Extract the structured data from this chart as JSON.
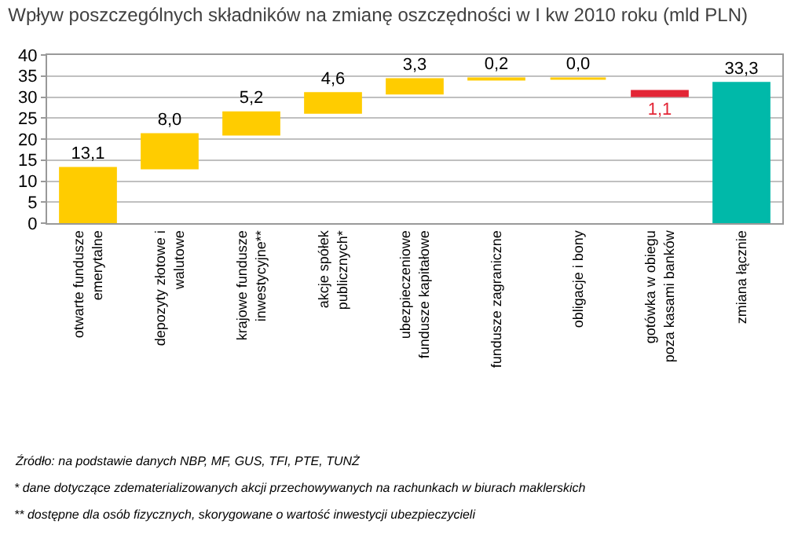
{
  "chart_data": {
    "type": "bar",
    "title": "Wpływ poszczególnych składników na zmianę oszczędności w I kw 2010 roku (mld PLN)",
    "categories": [
      "otwarte fundusze emerytalne",
      "depozyty złotowe i walutowe",
      "krajowe fundusze inwestycyjne**",
      "akcje spółek publicznych*",
      "ubezpieczeniowe fundusze kapitałowe",
      "fundusze zagraniczne",
      "obligacje i bony",
      "gotówka w obiegu poza kasami banków",
      "zmiana łącznie"
    ],
    "values": [
      13.1,
      8.0,
      5.2,
      4.6,
      3.3,
      0.2,
      0.0,
      -1.1,
      33.3
    ],
    "base": [
      0,
      13.1,
      21.1,
      26.3,
      30.9,
      34.2,
      34.4,
      31.4,
      0
    ],
    "colors": [
      "#ffcc00",
      "#ffcc00",
      "#ffcc00",
      "#ffcc00",
      "#ffcc00",
      "#ffcc00",
      "#ffcc00",
      "#e32636",
      "#00b9a9"
    ],
    "value_labels": [
      "13,1",
      "8,0",
      "5,2",
      "4,6",
      "3,3",
      "0,2",
      "0,0",
      "1,1",
      "33,3"
    ],
    "ylim": [
      0,
      40
    ],
    "yticks": [
      0,
      5,
      10,
      15,
      20,
      25,
      30,
      35,
      40
    ],
    "grid": "y",
    "annotations": [
      "Źródło: na podstawie danych NBP, MF, GUS, TFI, PTE, TUNŻ",
      "* dane dotyczące zdematerializowanych akcji przechowywanych na rachunkach w biurach maklerskich",
      "** dostępne dla osób fizycznych, skorygowane o wartość inwestycji ubezpieczycieli"
    ]
  }
}
